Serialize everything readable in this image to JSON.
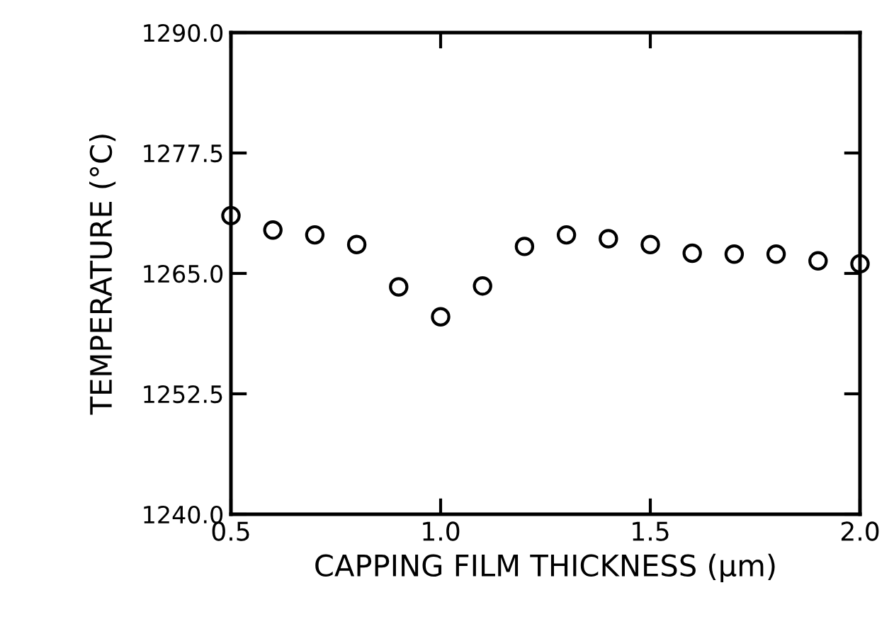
{
  "chart_data": {
    "type": "scatter",
    "xlabel": "CAPPING FILM THICKNESS (µm)",
    "ylabel": "TEMPERATURE (°C)",
    "x": [
      0.5,
      0.6,
      0.7,
      0.8,
      0.9,
      1.0,
      1.1,
      1.2,
      1.3,
      1.4,
      1.5,
      1.6,
      1.7,
      1.8,
      1.9,
      2.0
    ],
    "values": [
      1271.0,
      1269.5,
      1269.0,
      1268.0,
      1263.6,
      1260.5,
      1263.7,
      1267.8,
      1269.0,
      1268.6,
      1268.0,
      1267.1,
      1267.0,
      1267.0,
      1266.3,
      1266.0
    ],
    "color": "#000000",
    "marker": "circle",
    "xlim": [
      0.5,
      2.0
    ],
    "ylim": [
      1240.0,
      1290.0
    ],
    "xticks": [
      {
        "value": 0.5,
        "label": "0.5"
      },
      {
        "value": 1.0,
        "label": "1.0"
      },
      {
        "value": 1.5,
        "label": "1.5"
      },
      {
        "value": 2.0,
        "label": "2.0"
      }
    ],
    "yticks": [
      {
        "value": 1240.0,
        "label": "1240.0"
      },
      {
        "value": 1252.5,
        "label": "1252.5"
      },
      {
        "value": 1265.0,
        "label": "1265.0"
      },
      {
        "value": 1277.5,
        "label": "1277.5"
      },
      {
        "value": 1290.0,
        "label": "1290.0"
      }
    ],
    "grid": false,
    "legend": false
  }
}
